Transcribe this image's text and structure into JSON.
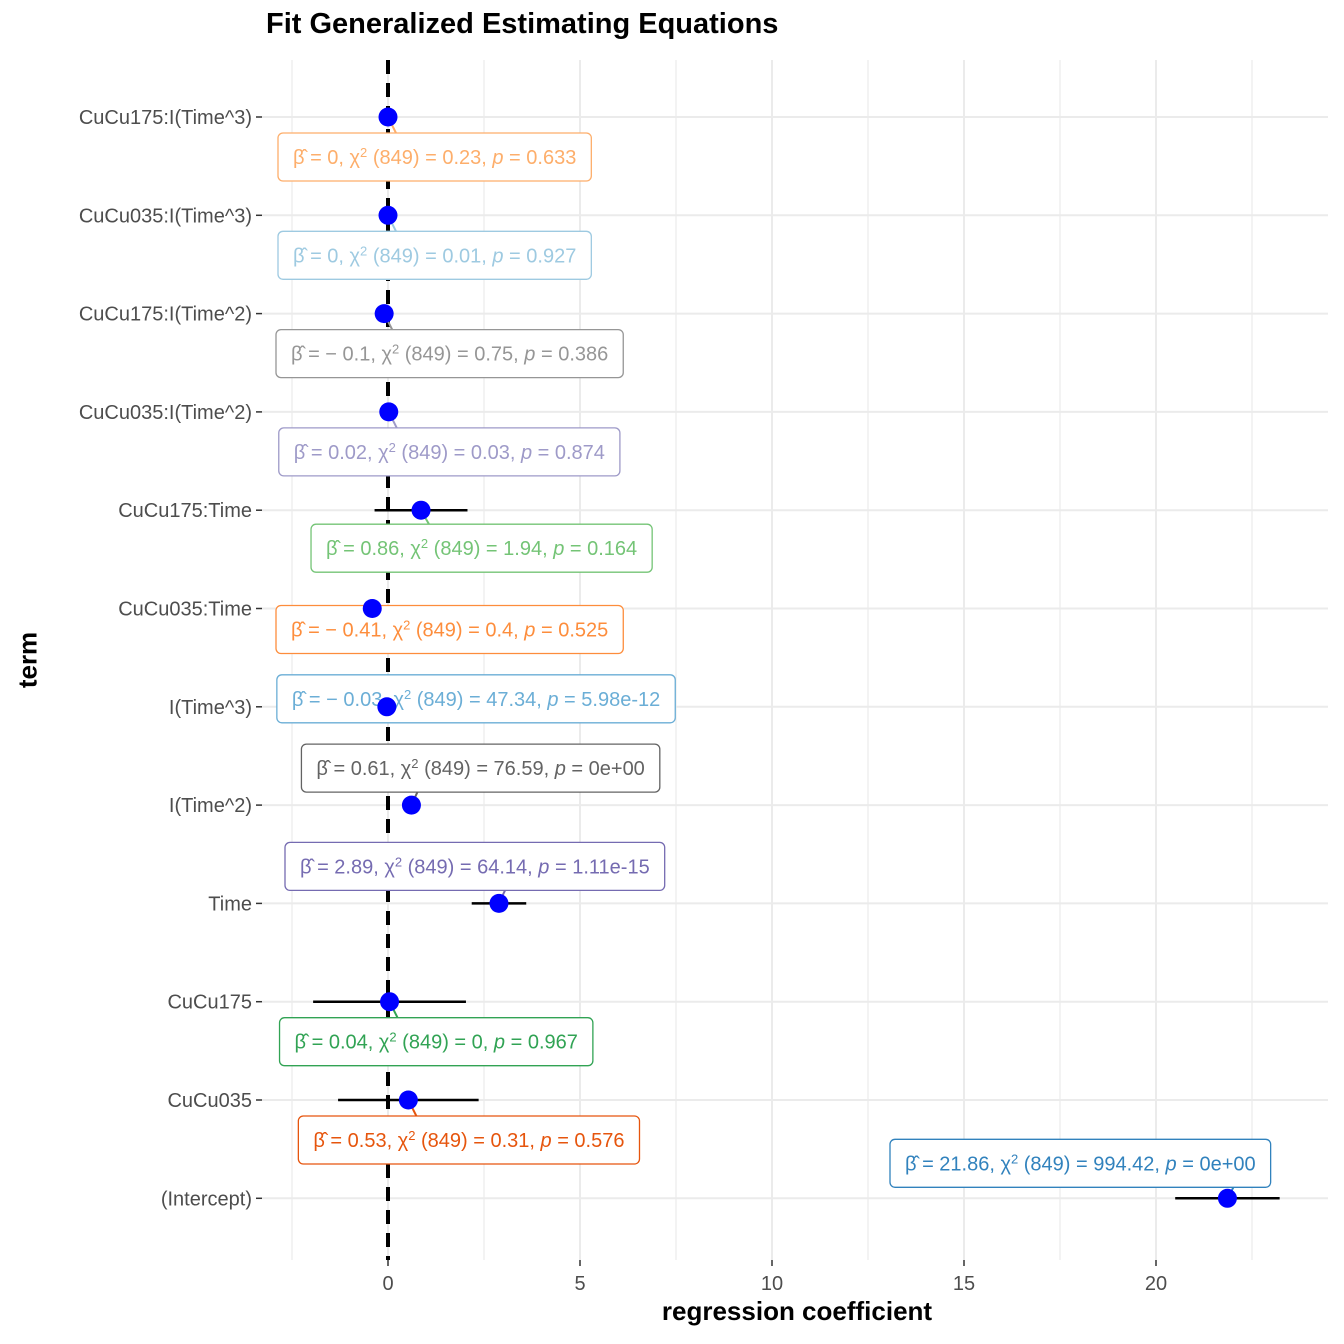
{
  "chart_data": {
    "type": "scatter",
    "title": "Fit Generalized Estimating Equations",
    "xlabel": "regression coefficient",
    "ylabel": "term",
    "xlim": [
      -3.0,
      24.3
    ],
    "x_ticks": [
      0,
      5,
      10,
      15,
      20
    ],
    "grid": true,
    "reference_line": 0,
    "point_color": "#0000FF",
    "terms": [
      {
        "term": "CuCu175:I(Time^3)",
        "estimate": 0.0,
        "low": 0.0,
        "high": 0.0,
        "label": {
          "beta": "0",
          "chi_df": "849",
          "chi": "0.23",
          "p": "0.633"
        },
        "color": "#FDAE6B"
      },
      {
        "term": "CuCu035:I(Time^3)",
        "estimate": 0.0,
        "low": 0.0,
        "high": 0.0,
        "label": {
          "beta": "0",
          "chi_df": "849",
          "chi": "0.01",
          "p": "0.927"
        },
        "color": "#9ECAE1"
      },
      {
        "term": "CuCu175:I(Time^2)",
        "estimate": -0.1,
        "low": -0.3,
        "high": 0.1,
        "label": {
          "beta": "− 0.1",
          "chi_df": "849",
          "chi": "0.75",
          "p": "0.386"
        },
        "color": "#969696"
      },
      {
        "term": "CuCu035:I(Time^2)",
        "estimate": 0.02,
        "low": -0.2,
        "high": 0.24,
        "label": {
          "beta": "0.02",
          "chi_df": "849",
          "chi": "0.03",
          "p": "0.874"
        },
        "color": "#9E9AC8"
      },
      {
        "term": "CuCu175:Time",
        "estimate": 0.86,
        "low": -0.35,
        "high": 2.07,
        "label": {
          "beta": "0.86",
          "chi_df": "849",
          "chi": "1.94",
          "p": "0.164"
        },
        "color": "#74C476"
      },
      {
        "term": "CuCu035:Time",
        "estimate": -0.41,
        "low": -1.0,
        "high": 0.18,
        "label": {
          "beta": "− 0.41",
          "chi_df": "849",
          "chi": "0.4",
          "p": "0.525"
        },
        "color": "#FD8D3C"
      },
      {
        "term": "I(Time^3)",
        "estimate": -0.03,
        "low": -0.04,
        "high": -0.02,
        "label": {
          "beta": "− 0.03",
          "chi_df": "849",
          "chi": "47.34",
          "p": "5.98e-12"
        },
        "color": "#6BAED6"
      },
      {
        "term": "I(Time^2)",
        "estimate": 0.61,
        "low": 0.47,
        "high": 0.75,
        "label": {
          "beta": "0.61",
          "chi_df": "849",
          "chi": "76.59",
          "p": "0e+00"
        },
        "color": "#636363"
      },
      {
        "term": "Time",
        "estimate": 2.89,
        "low": 2.18,
        "high": 3.6,
        "label": {
          "beta": "2.89",
          "chi_df": "849",
          "chi": "64.14",
          "p": "1.11e-15"
        },
        "color": "#756BB1"
      },
      {
        "term": "CuCu175",
        "estimate": 0.04,
        "low": -1.95,
        "high": 2.03,
        "label": {
          "beta": "0.04",
          "chi_df": "849",
          "chi": "0",
          "p": "0.967"
        },
        "color": "#31A354"
      },
      {
        "term": "CuCu035",
        "estimate": 0.53,
        "low": -1.3,
        "high": 2.36,
        "label": {
          "beta": "0.53",
          "chi_df": "849",
          "chi": "0.31",
          "p": "0.576"
        },
        "color": "#E6550D"
      },
      {
        "term": "(Intercept)",
        "estimate": 21.86,
        "low": 20.5,
        "high": 23.22,
        "label": {
          "beta": "21.86",
          "chi_df": "849",
          "chi": "994.42",
          "p": "0e+00"
        },
        "color": "#3182BD"
      }
    ]
  }
}
